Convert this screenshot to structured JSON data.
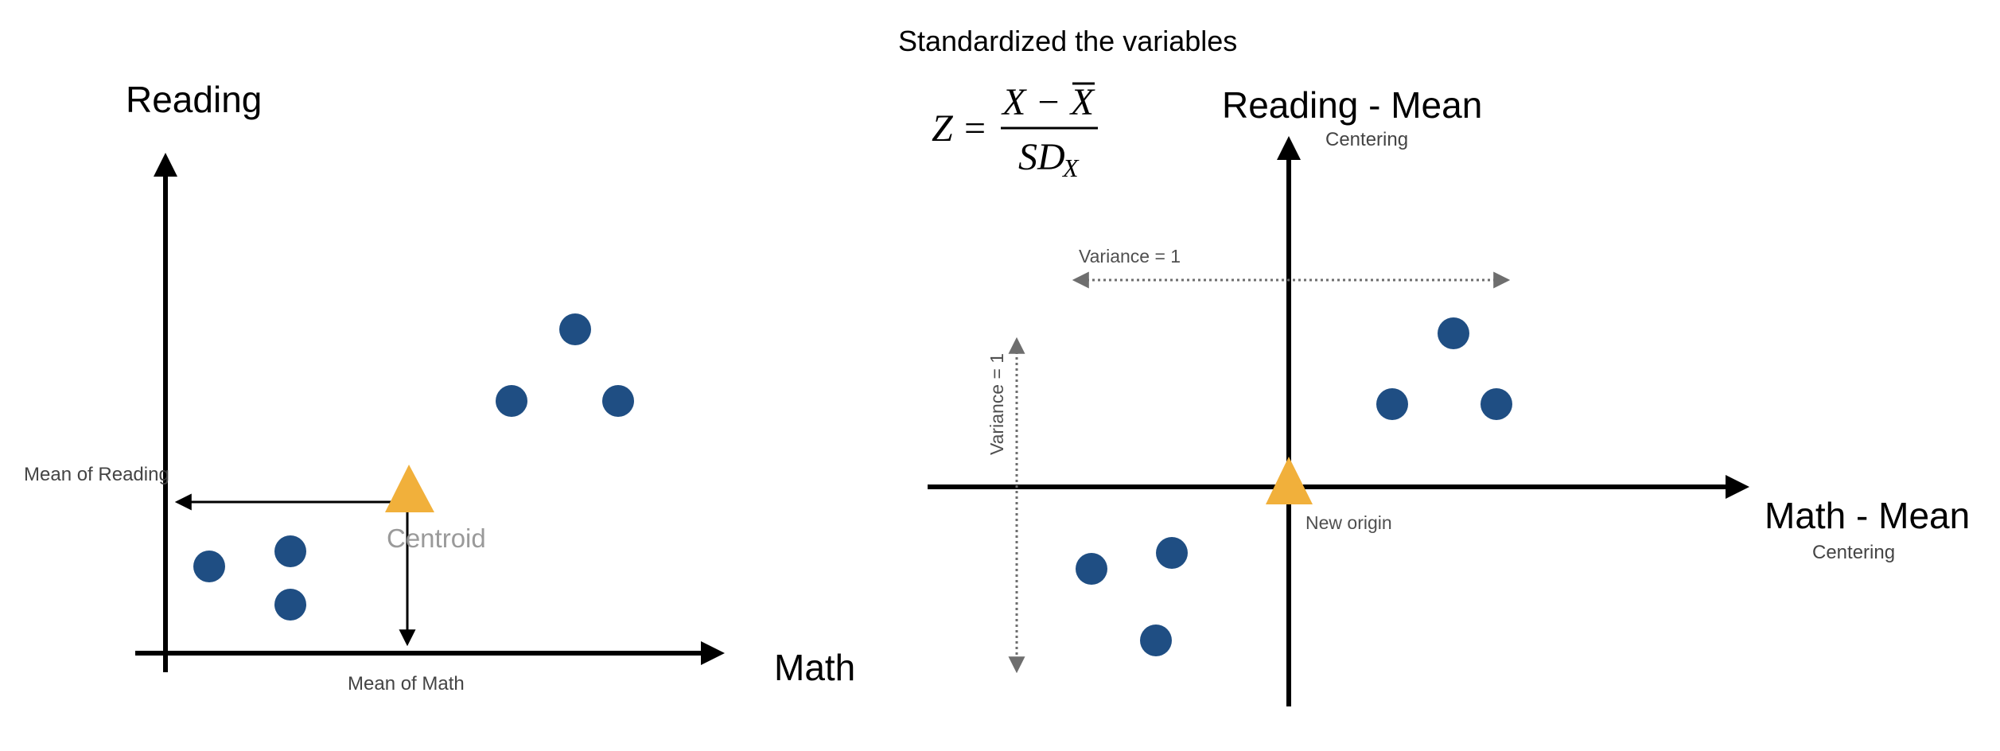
{
  "colors": {
    "point": "#1f4e83",
    "centroid": "#f1b03b",
    "axis": "#000000",
    "guide": "#6e6e6e"
  },
  "left_panel": {
    "y_axis_label": "Reading",
    "x_axis_label": "Math",
    "mean_reading_label": "Mean of Reading",
    "mean_math_label": "Mean of Math",
    "centroid_label": "Centroid"
  },
  "right_panel": {
    "title": "Standardized the variables",
    "formula": {
      "lhs": "Z",
      "eq": "=",
      "numerator": "X − X",
      "denominator": "SD",
      "subscript": "X"
    },
    "y_axis_label": "Reading - Mean",
    "y_axis_note": "Centering",
    "x_axis_label": "Math - Mean",
    "x_axis_note": "Centering",
    "horizontal_variance_label": "Variance = 1",
    "vertical_variance_label": "Variance = 1",
    "origin_label": "New origin"
  }
}
